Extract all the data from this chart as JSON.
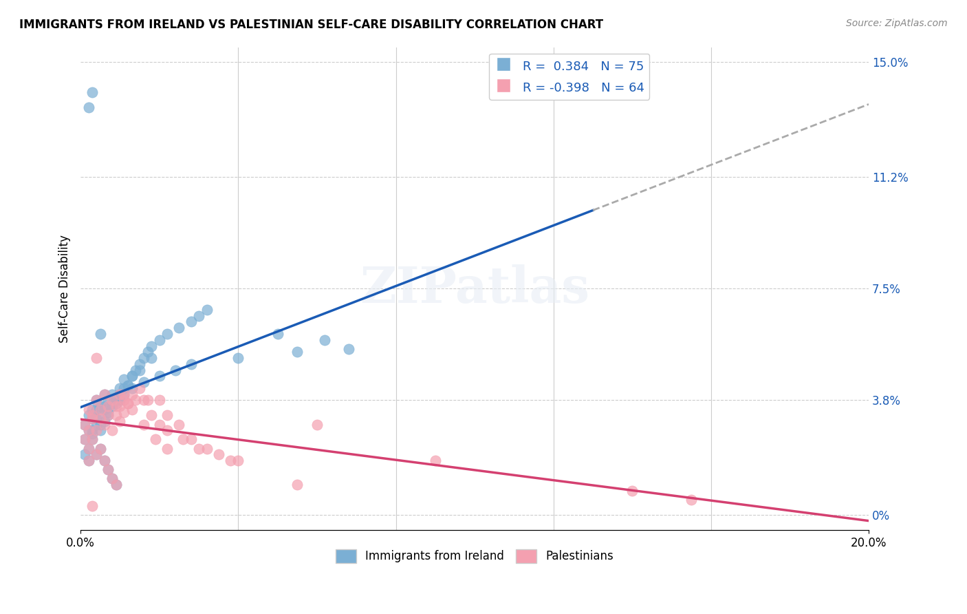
{
  "title": "IMMIGRANTS FROM IRELAND VS PALESTINIAN SELF-CARE DISABILITY CORRELATION CHART",
  "source": "Source: ZipAtlas.com",
  "xlabel": "",
  "ylabel": "Self-Care Disability",
  "xlim": [
    0,
    0.2
  ],
  "ylim": [
    -0.005,
    0.155
  ],
  "ytick_labels": [
    "0%",
    "3.8%",
    "7.5%",
    "11.2%",
    "15.0%"
  ],
  "ytick_vals": [
    0,
    0.038,
    0.075,
    0.112,
    0.15
  ],
  "xtick_labels": [
    "0.0%",
    "20.0%"
  ],
  "xtick_vals": [
    0,
    0.2
  ],
  "blue_R": 0.384,
  "blue_N": 75,
  "pink_R": -0.398,
  "pink_N": 64,
  "blue_color": "#7bafd4",
  "pink_color": "#f4a0b0",
  "blue_line_color": "#1a5bb5",
  "pink_line_color": "#d44070",
  "dash_line_color": "#aaaaaa",
  "watermark": "ZIPatlas",
  "legend_label_blue": "Immigrants from Ireland",
  "legend_label_pink": "Palestinians",
  "blue_x": [
    0.002,
    0.003,
    0.003,
    0.004,
    0.004,
    0.005,
    0.005,
    0.006,
    0.006,
    0.007,
    0.007,
    0.008,
    0.008,
    0.009,
    0.01,
    0.01,
    0.011,
    0.012,
    0.013,
    0.014,
    0.015,
    0.016,
    0.017,
    0.018,
    0.02,
    0.022,
    0.025,
    0.028,
    0.03,
    0.032,
    0.001,
    0.001,
    0.002,
    0.003,
    0.003,
    0.004,
    0.004,
    0.005,
    0.005,
    0.006,
    0.006,
    0.007,
    0.008,
    0.009,
    0.01,
    0.011,
    0.012,
    0.013,
    0.015,
    0.018,
    0.001,
    0.002,
    0.002,
    0.003,
    0.004,
    0.005,
    0.006,
    0.007,
    0.008,
    0.009,
    0.01,
    0.011,
    0.013,
    0.016,
    0.02,
    0.024,
    0.028,
    0.04,
    0.055,
    0.068,
    0.002,
    0.003,
    0.005,
    0.05,
    0.062
  ],
  "blue_y": [
    0.033,
    0.035,
    0.028,
    0.038,
    0.032,
    0.036,
    0.03,
    0.04,
    0.035,
    0.038,
    0.033,
    0.036,
    0.04,
    0.037,
    0.042,
    0.038,
    0.045,
    0.043,
    0.046,
    0.048,
    0.05,
    0.052,
    0.054,
    0.056,
    0.058,
    0.06,
    0.062,
    0.064,
    0.066,
    0.068,
    0.03,
    0.025,
    0.028,
    0.032,
    0.027,
    0.035,
    0.03,
    0.033,
    0.028,
    0.036,
    0.031,
    0.034,
    0.037,
    0.038,
    0.04,
    0.042,
    0.043,
    0.046,
    0.048,
    0.052,
    0.02,
    0.022,
    0.018,
    0.025,
    0.02,
    0.022,
    0.018,
    0.015,
    0.012,
    0.01,
    0.038,
    0.04,
    0.042,
    0.044,
    0.046,
    0.048,
    0.05,
    0.052,
    0.054,
    0.055,
    0.135,
    0.14,
    0.06,
    0.06,
    0.058
  ],
  "pink_x": [
    0.002,
    0.003,
    0.004,
    0.005,
    0.006,
    0.007,
    0.008,
    0.009,
    0.01,
    0.011,
    0.012,
    0.013,
    0.015,
    0.017,
    0.02,
    0.022,
    0.025,
    0.028,
    0.032,
    0.038,
    0.001,
    0.002,
    0.003,
    0.004,
    0.005,
    0.006,
    0.007,
    0.008,
    0.009,
    0.01,
    0.011,
    0.012,
    0.014,
    0.016,
    0.018,
    0.02,
    0.022,
    0.026,
    0.03,
    0.035,
    0.001,
    0.002,
    0.002,
    0.003,
    0.004,
    0.005,
    0.006,
    0.007,
    0.008,
    0.009,
    0.01,
    0.011,
    0.013,
    0.016,
    0.019,
    0.022,
    0.04,
    0.055,
    0.14,
    0.155,
    0.003,
    0.06,
    0.004,
    0.09
  ],
  "pink_y": [
    0.035,
    0.033,
    0.038,
    0.032,
    0.04,
    0.036,
    0.038,
    0.033,
    0.036,
    0.04,
    0.037,
    0.04,
    0.042,
    0.038,
    0.038,
    0.033,
    0.03,
    0.025,
    0.022,
    0.018,
    0.03,
    0.028,
    0.032,
    0.028,
    0.035,
    0.03,
    0.033,
    0.028,
    0.036,
    0.031,
    0.034,
    0.037,
    0.038,
    0.038,
    0.033,
    0.03,
    0.028,
    0.025,
    0.022,
    0.02,
    0.025,
    0.022,
    0.018,
    0.025,
    0.02,
    0.022,
    0.018,
    0.015,
    0.012,
    0.01,
    0.04,
    0.038,
    0.035,
    0.03,
    0.025,
    0.022,
    0.018,
    0.01,
    0.008,
    0.005,
    0.003,
    0.03,
    0.052,
    0.018
  ]
}
